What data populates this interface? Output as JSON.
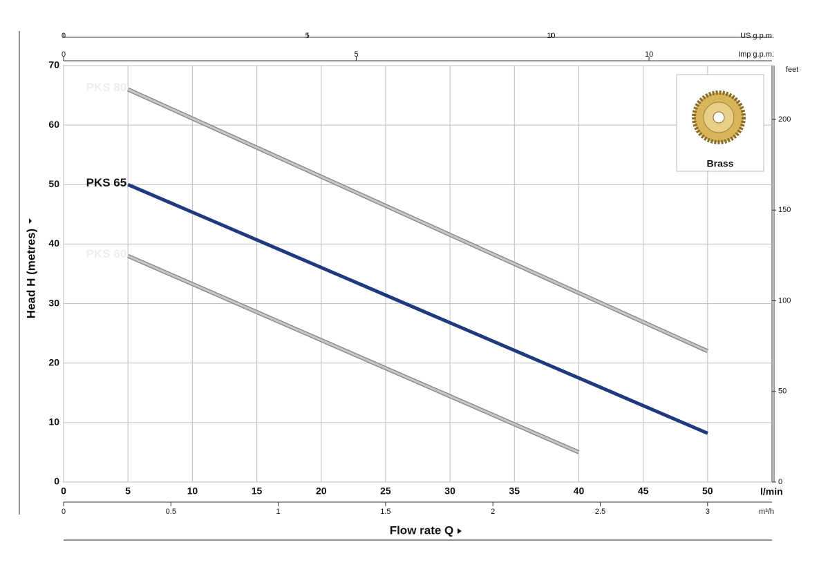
{
  "chart_data": {
    "type": "line",
    "x_label": "Flow rate Q",
    "x_unit": "l/min",
    "y_label": "Head H (metres)",
    "y2_label": "feet",
    "xlim": [
      0,
      55
    ],
    "xticks": [
      0,
      5,
      10,
      15,
      20,
      25,
      30,
      35,
      40,
      45,
      50
    ],
    "ylim": [
      0,
      70
    ],
    "yticks": [
      0,
      10,
      20,
      30,
      40,
      50,
      60,
      70
    ],
    "y2lim": [
      0,
      229.66
    ],
    "y2ticks": [
      0,
      50,
      100,
      150,
      200
    ],
    "extra_x_axes": [
      {
        "label": "US g.p.m.",
        "lim": [
          0,
          14.53
        ],
        "ticks": [
          0,
          5,
          10
        ]
      },
      {
        "label": "Imp g.p.m.",
        "lim": [
          0,
          12.1
        ],
        "ticks": [
          0,
          5,
          10
        ]
      },
      {
        "label": "m³/h",
        "lim": [
          0,
          3.3
        ],
        "ticks": [
          0,
          0.5,
          1,
          1.5,
          2,
          2.5,
          3
        ]
      }
    ],
    "grid": true,
    "series": [
      {
        "name": "PKS 80",
        "color": "#c8c8cc",
        "x": [
          5,
          50
        ],
        "values": [
          66,
          22
        ]
      },
      {
        "name": "PKS 65",
        "color": "#1f3a7e",
        "x": [
          5,
          50
        ],
        "values": [
          50,
          8.2
        ]
      },
      {
        "name": "PKS 60",
        "color": "#c8c8cc",
        "x": [
          5,
          40
        ],
        "values": [
          38,
          5
        ]
      }
    ],
    "inset_label": "Brass"
  }
}
